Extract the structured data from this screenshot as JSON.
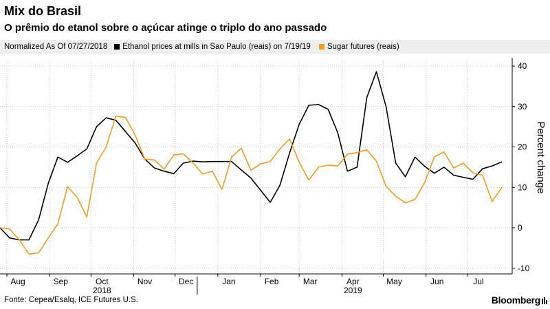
{
  "header": {
    "title": "Mix do Brasil",
    "subtitle": "O prêmio do etanol sobre o açúcar atinge o triplo do ano passado"
  },
  "legend": {
    "note": "Normalized As Of 07/27/2018",
    "items": [
      {
        "label": "Ethanol prices at mills in Sao Paulo (reais) on 7/19/19",
        "color": "#000000"
      },
      {
        "label": "Sugar futures (reais)",
        "color": "#f39c1f"
      }
    ]
  },
  "footer": {
    "source": "Fonte: Cepea/Esalq, ICE Futures U.S.",
    "brand": "Bloomberg"
  },
  "chart_data": {
    "type": "line",
    "title": "O prêmio do etanol sobre o açúcar atinge o triplo do ano passado",
    "ylabel": "Percent change",
    "xlabel": "",
    "ylim": [
      -12,
      44
    ],
    "yticks": [
      -10,
      0,
      10,
      20,
      30,
      40
    ],
    "grid": true,
    "legend_position": "top",
    "x_ticks": [
      "Aug",
      "Sep",
      "Oct",
      "Nov",
      "Dec",
      "Jan",
      "Feb",
      "Mar",
      "Apr",
      "May",
      "Jun",
      "Jul"
    ],
    "x_years": [
      "2018",
      "2019"
    ],
    "x_start": "2018-07-27",
    "x_end": "2019-07-26",
    "x_tick_dates": [
      "2018-08-01",
      "2018-09-01",
      "2018-10-01",
      "2018-11-01",
      "2018-12-01",
      "2019-01-01",
      "2019-02-01",
      "2019-03-01",
      "2019-04-01",
      "2019-05-01",
      "2019-06-01",
      "2019-07-01"
    ],
    "year_dates": [
      "2018-10-01",
      "2019-04-01"
    ],
    "year_divider_date": "2019-01-01",
    "series": [
      {
        "name": "Ethanol prices at mills in Sao Paulo (reais) on 7/19/19",
        "color": "#000000",
        "points": [
          [
            "2018-07-27",
            0
          ],
          [
            "2018-08-03",
            -2.5
          ],
          [
            "2018-08-10",
            -3
          ],
          [
            "2018-08-17",
            -3
          ],
          [
            "2018-08-24",
            2
          ],
          [
            "2018-08-31",
            11
          ],
          [
            "2018-09-07",
            17.5
          ],
          [
            "2018-09-14",
            16.2
          ],
          [
            "2018-09-21",
            17.8
          ],
          [
            "2018-09-28",
            19.5
          ],
          [
            "2018-10-05",
            25
          ],
          [
            "2018-10-12",
            27.2
          ],
          [
            "2018-10-19",
            26.6
          ],
          [
            "2018-10-26",
            23.8
          ],
          [
            "2018-11-02",
            21
          ],
          [
            "2018-11-09",
            17
          ],
          [
            "2018-11-16",
            14.8
          ],
          [
            "2018-11-23",
            14
          ],
          [
            "2018-11-30",
            13.4
          ],
          [
            "2018-12-07",
            16
          ],
          [
            "2018-12-14",
            16.5
          ],
          [
            "2018-12-21",
            16.3
          ],
          [
            "2018-12-28",
            16.4
          ],
          [
            "2019-01-04",
            16.4
          ],
          [
            "2019-01-11",
            16.4
          ],
          [
            "2019-01-18",
            14.3
          ],
          [
            "2019-01-25",
            12.3
          ],
          [
            "2019-02-01",
            9.3
          ],
          [
            "2019-02-08",
            6.3
          ],
          [
            "2019-02-15",
            10.5
          ],
          [
            "2019-02-22",
            18.5
          ],
          [
            "2019-03-01",
            25.6
          ],
          [
            "2019-03-08",
            30.3
          ],
          [
            "2019-03-15",
            30.5
          ],
          [
            "2019-03-22",
            29.3
          ],
          [
            "2019-03-29",
            23.5
          ],
          [
            "2019-04-05",
            14
          ],
          [
            "2019-04-12",
            15
          ],
          [
            "2019-04-19",
            32.2
          ],
          [
            "2019-04-26",
            38.6
          ],
          [
            "2019-05-03",
            30
          ],
          [
            "2019-05-10",
            16
          ],
          [
            "2019-05-17",
            12.6
          ],
          [
            "2019-05-24",
            17.5
          ],
          [
            "2019-05-31",
            15.2
          ],
          [
            "2019-06-07",
            13.5
          ],
          [
            "2019-06-14",
            15
          ],
          [
            "2019-06-21",
            13
          ],
          [
            "2019-06-28",
            12.5
          ],
          [
            "2019-07-05",
            12
          ],
          [
            "2019-07-12",
            14.6
          ],
          [
            "2019-07-19",
            15.3
          ],
          [
            "2019-07-26",
            16.3
          ]
        ]
      },
      {
        "name": "Sugar futures (reais)",
        "color": "#f39c1f",
        "points": [
          [
            "2018-07-27",
            0
          ],
          [
            "2018-08-03",
            -0.3
          ],
          [
            "2018-08-10",
            -3
          ],
          [
            "2018-08-17",
            -6.5
          ],
          [
            "2018-08-24",
            -6.2
          ],
          [
            "2018-08-31",
            -2.5
          ],
          [
            "2018-09-07",
            1
          ],
          [
            "2018-09-14",
            10.2
          ],
          [
            "2018-09-21",
            7.5
          ],
          [
            "2018-09-28",
            2.7
          ],
          [
            "2018-10-05",
            16
          ],
          [
            "2018-10-12",
            20
          ],
          [
            "2018-10-19",
            27.6
          ],
          [
            "2018-10-26",
            27.3
          ],
          [
            "2018-11-02",
            23
          ],
          [
            "2018-11-09",
            17
          ],
          [
            "2018-11-16",
            16.8
          ],
          [
            "2018-11-23",
            14.5
          ],
          [
            "2018-11-30",
            18
          ],
          [
            "2018-12-07",
            18.3
          ],
          [
            "2018-12-14",
            16
          ],
          [
            "2018-12-21",
            13.3
          ],
          [
            "2018-12-28",
            14
          ],
          [
            "2019-01-04",
            9.5
          ],
          [
            "2019-01-11",
            17.5
          ],
          [
            "2019-01-18",
            19.7
          ],
          [
            "2019-01-25",
            14.2
          ],
          [
            "2019-02-01",
            15.8
          ],
          [
            "2019-02-08",
            16.4
          ],
          [
            "2019-02-15",
            19.5
          ],
          [
            "2019-02-22",
            22
          ],
          [
            "2019-03-01",
            16.2
          ],
          [
            "2019-03-08",
            11.8
          ],
          [
            "2019-03-15",
            15
          ],
          [
            "2019-03-22",
            15.5
          ],
          [
            "2019-03-29",
            15.3
          ],
          [
            "2019-04-05",
            18.2
          ],
          [
            "2019-04-12",
            18.6
          ],
          [
            "2019-04-19",
            19.3
          ],
          [
            "2019-04-26",
            16.5
          ],
          [
            "2019-05-03",
            10.3
          ],
          [
            "2019-05-10",
            7.8
          ],
          [
            "2019-05-17",
            6.2
          ],
          [
            "2019-05-24",
            7
          ],
          [
            "2019-05-31",
            11.2
          ],
          [
            "2019-06-07",
            17.5
          ],
          [
            "2019-06-14",
            18.8
          ],
          [
            "2019-06-21",
            14.8
          ],
          [
            "2019-06-28",
            16
          ],
          [
            "2019-07-05",
            13.6
          ],
          [
            "2019-07-12",
            13
          ],
          [
            "2019-07-19",
            6.5
          ],
          [
            "2019-07-26",
            10
          ]
        ]
      }
    ]
  }
}
